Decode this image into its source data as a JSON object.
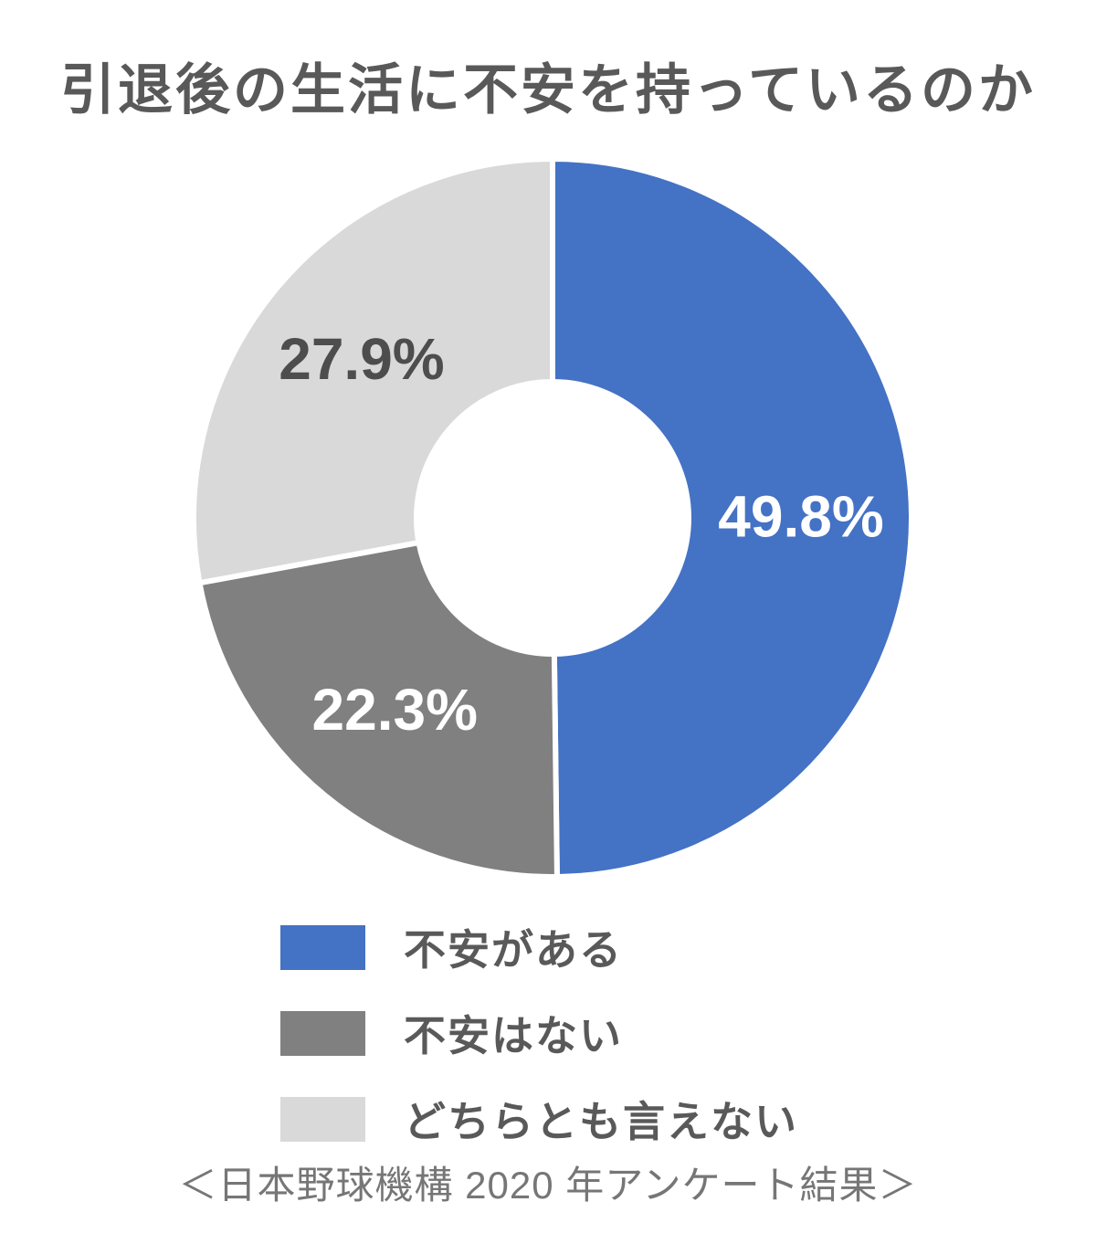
{
  "title": "引退後の生活に不安を持っているのか",
  "source_note": "＜日本野球機構 2020 年アンケート結果＞",
  "colors": {
    "background": "#FFFFFF",
    "title_text": "#595959",
    "legend_text": "#595959",
    "source_text": "#767676",
    "slice_border": "#FFFFFF"
  },
  "chart_data": {
    "type": "pie",
    "subtype": "donut",
    "title": "引退後の生活に不安を持っているのか",
    "start_angle_deg": 0,
    "direction": "clockwise",
    "inner_radius_ratio": 0.38,
    "legend_position": "bottom-left",
    "slices": [
      {
        "id": "anxious",
        "label": "不安がある",
        "value": 49.8,
        "value_label": "49.8%",
        "color": "#4472C4",
        "label_color": "#FFFFFF"
      },
      {
        "id": "not-anxious",
        "label": "不安はない",
        "value": 22.3,
        "value_label": "22.3%",
        "color": "#808080",
        "label_color": "#FFFFFF"
      },
      {
        "id": "neither",
        "label": "どちらとも言えない",
        "value": 27.9,
        "value_label": "27.9%",
        "color": "#D9D9D9",
        "label_color": "#4D4D4D"
      }
    ]
  }
}
